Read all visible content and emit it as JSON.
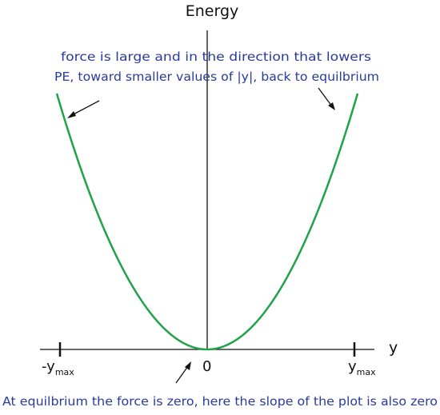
{
  "diagram": {
    "y_axis_label": "Energy",
    "x_axis_label": "y",
    "ticks": {
      "neg": {
        "main": "-y",
        "sub": "max"
      },
      "zero": "0",
      "pos": {
        "main": "y",
        "sub": "max"
      }
    },
    "annotations": {
      "top_line1": "force is large and in the direction that lowers",
      "top_line2": "PE, toward smaller values of |y|, back to equilbrium",
      "bottom": "At equilbrium the force is zero, here the slope of the plot is also zero"
    },
    "colors": {
      "curve": "#1ea34a",
      "axes": "#111111",
      "annotation_text": "#2a3a9e"
    }
  }
}
